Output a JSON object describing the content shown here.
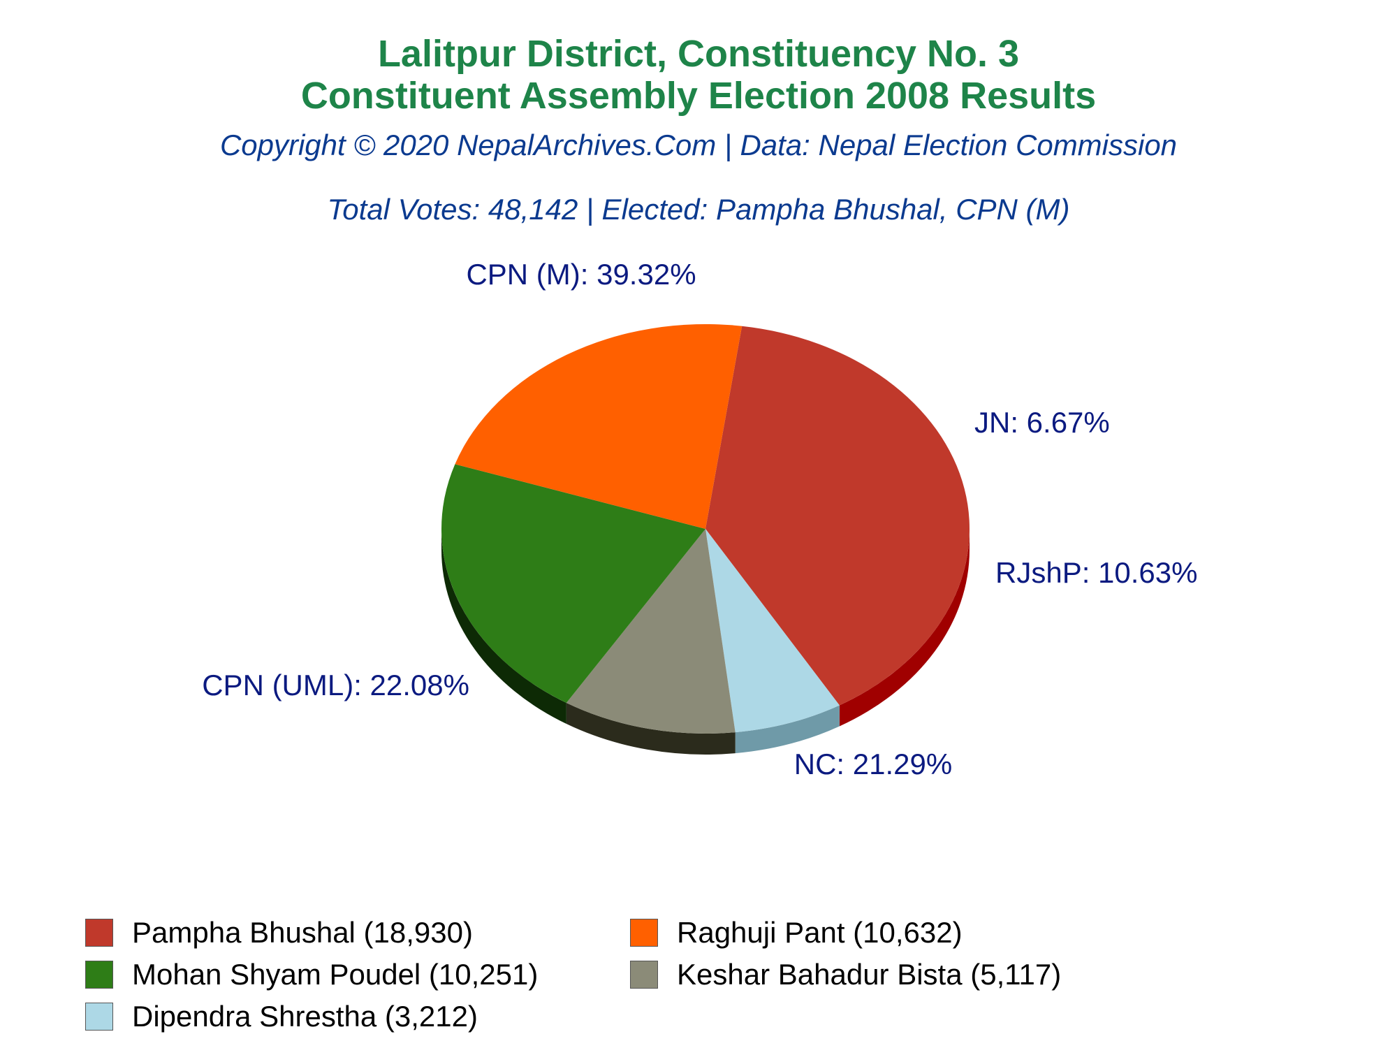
{
  "title_line1": "Lalitpur District, Constituency No. 3",
  "title_line2": "Constituent Assembly Election 2008 Results",
  "copyright": "Copyright © 2020 NepalArchives.Com | Data: Nepal Election Commission",
  "summary": "Total Votes: 48,142 | Elected: Pampha Bhushal, CPN (M)",
  "chart_data": {
    "type": "pie",
    "title": "Lalitpur District, Constituency No. 3 Constituent Assembly Election 2008 Results",
    "total_votes": 48142,
    "slices": [
      {
        "party": "CPN (M)",
        "label": "CPN (M): 39.32%",
        "percent": 39.32,
        "candidate": "Pampha Bhushal",
        "votes": 18930,
        "legend": "Pampha Bhushal (18,930)",
        "color": "#c0392b",
        "side_color": "#a00000"
      },
      {
        "party": "JN",
        "label": "JN: 6.67%",
        "percent": 6.67,
        "candidate": "Dipendra Shrestha",
        "votes": 3212,
        "legend": "Dipendra Shrestha (3,212)",
        "color": "#add8e6",
        "side_color": "#6f9aa8"
      },
      {
        "party": "RJshP",
        "label": "RJshP: 10.63%",
        "percent": 10.63,
        "candidate": "Keshar Bahadur Bista",
        "votes": 5117,
        "legend": "Keshar Bahadur Bista (5,117)",
        "color": "#8b8b78",
        "side_color": "#2b2b1c"
      },
      {
        "party": "NC",
        "label": "NC: 21.29%",
        "percent": 21.29,
        "candidate": "Mohan Shyam Poudel",
        "votes": 10251,
        "legend": "Mohan Shyam Poudel (10,251)",
        "color": "#2e7d17",
        "side_color": "#0d2a05"
      },
      {
        "party": "CPN (UML)",
        "label": "CPN (UML): 22.08%",
        "percent": 22.08,
        "candidate": "Raghuji Pant",
        "votes": 10632,
        "legend": "Raghuji Pant (10,632)",
        "color": "#ff6000",
        "side_color": "#a00000"
      }
    ],
    "legend_order": [
      0,
      4,
      3,
      2,
      1
    ],
    "legend_placement": "bottom"
  }
}
